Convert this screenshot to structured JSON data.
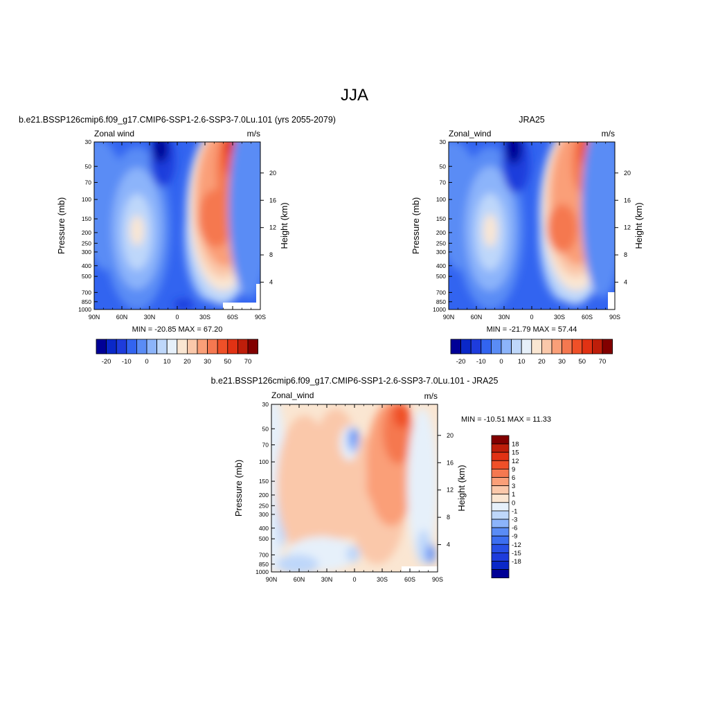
{
  "figure": {
    "title": "JJA",
    "colors": {
      "cbar_main": [
        "#000096",
        "#0a28c8",
        "#1e3cdc",
        "#3264f0",
        "#5a8cf5",
        "#8cb4fa",
        "#bed7fa",
        "#e6f0fa",
        "#fae6d2",
        "#fac8aa",
        "#fa9f78",
        "#f57850",
        "#ef5028",
        "#e13214",
        "#be1e0a",
        "#820000"
      ],
      "cbar_diff": [
        "#000096",
        "#0a28c8",
        "#1e3cdc",
        "#2850e6",
        "#3c6ef0",
        "#5a8cf5",
        "#8cb4fa",
        "#bed7fa",
        "#e6f0fa",
        "#fae6d2",
        "#fac8aa",
        "#fa9f78",
        "#f57850",
        "#ef5028",
        "#e13214",
        "#be1e0a",
        "#820000"
      ]
    }
  },
  "chart_data": [
    {
      "type": "heatmap",
      "title": "b.e21.BSSP126cmip6.f09_g17.CMIP6-SSP1-2.6-SSP3-7.0Lu.101 (yrs 2055-2079)",
      "left_label": "Zonal wind",
      "right_label": "m/s",
      "ylabel": "Pressure (mb)",
      "ylabel_right": "Height (km)",
      "x_ticks": [
        "90N",
        "60N",
        "30N",
        "0",
        "30S",
        "60S",
        "90S"
      ],
      "y_ticks": [
        "30",
        "50",
        "70",
        "100",
        "150",
        "200",
        "250",
        "300",
        "400",
        "500",
        "700",
        "850",
        "1000"
      ],
      "y_ticks_right": [
        "20",
        "16",
        "12",
        "8",
        "4"
      ],
      "xlim": [
        -90,
        90
      ],
      "ylim": [
        1000,
        30
      ],
      "stats": "MIN = -20.85  MAX =  67.20",
      "min": -20.85,
      "max": 67.2,
      "colorbar_labels": [
        "-20",
        "-10",
        "0",
        "10",
        "20",
        "30",
        "50",
        "70"
      ]
    },
    {
      "type": "heatmap",
      "title": "JRA25",
      "left_label": "Zonal_wind",
      "right_label": "m/s",
      "ylabel": "Pressure (mb)",
      "ylabel_right": "Height (km)",
      "x_ticks": [
        "90N",
        "60N",
        "30N",
        "0",
        "30S",
        "60S",
        "90S"
      ],
      "y_ticks": [
        "30",
        "50",
        "70",
        "100",
        "150",
        "200",
        "250",
        "300",
        "400",
        "500",
        "700",
        "850",
        "1000"
      ],
      "y_ticks_right": [
        "20",
        "16",
        "12",
        "8",
        "4"
      ],
      "xlim": [
        -90,
        90
      ],
      "ylim": [
        1000,
        30
      ],
      "stats": "MIN = -21.79  MAX =  57.44",
      "min": -21.79,
      "max": 57.44,
      "colorbar_labels": [
        "-20",
        "-10",
        "0",
        "10",
        "20",
        "30",
        "50",
        "70"
      ]
    },
    {
      "type": "heatmap",
      "title": "b.e21.BSSP126cmip6.f09_g17.CMIP6-SSP1-2.6-SSP3-7.0Lu.101 - JRA25",
      "left_label": "Zonal_wind",
      "right_label": "m/s",
      "ylabel": "Pressure (mb)",
      "ylabel_right": "Height (km)",
      "x_ticks": [
        "90N",
        "60N",
        "30N",
        "0",
        "30S",
        "60S",
        "90S"
      ],
      "y_ticks": [
        "30",
        "50",
        "70",
        "100",
        "150",
        "200",
        "250",
        "300",
        "400",
        "500",
        "700",
        "850",
        "1000"
      ],
      "y_ticks_right": [
        "20",
        "16",
        "12",
        "8",
        "4"
      ],
      "xlim": [
        -90,
        90
      ],
      "ylim": [
        1000,
        30
      ],
      "stats": "MIN = -10.51  MAX =  11.33",
      "min": -10.51,
      "max": 11.33,
      "colorbar_labels": [
        "18",
        "15",
        "12",
        "9",
        "6",
        "3",
        "1",
        "0",
        "-1",
        "-3",
        "-6",
        "-9",
        "-12",
        "-15",
        "-18"
      ]
    }
  ]
}
